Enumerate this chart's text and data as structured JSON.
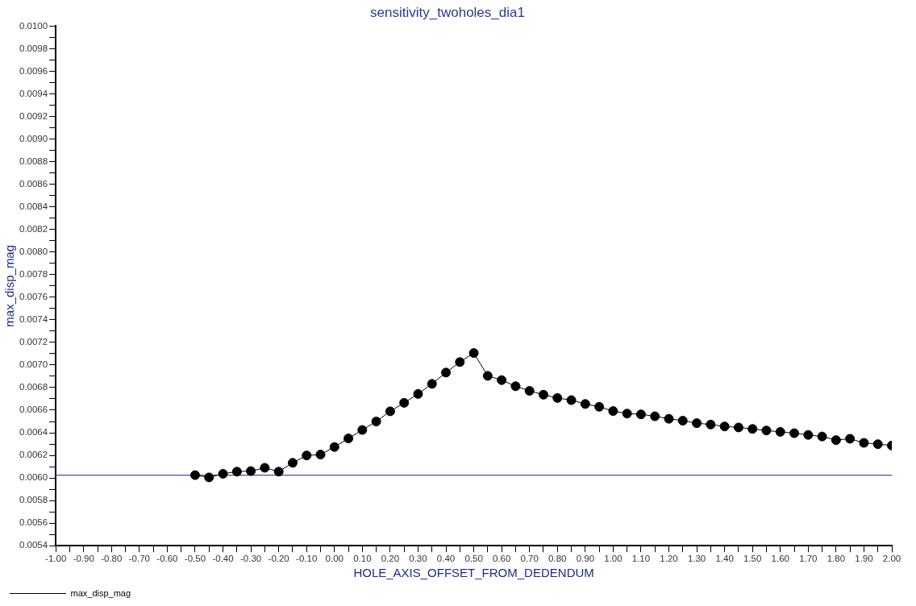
{
  "chart_data": {
    "type": "line",
    "title": "sensitivity_twoholes_dia1",
    "xlabel": "HOLE_AXIS_OFFSET_FROM_DEDENDUM",
    "ylabel": "max_disp_mag",
    "x": [
      -0.5,
      -0.45,
      -0.4,
      -0.35,
      -0.3,
      -0.25,
      -0.2,
      -0.15,
      -0.1,
      -0.05,
      0,
      0.05,
      0.1,
      0.15,
      0.2,
      0.25,
      0.3,
      0.35,
      0.4,
      0.45,
      0.5,
      0.55,
      0.6,
      0.65,
      0.7,
      0.75,
      0.8,
      0.85,
      0.9,
      0.95,
      1,
      1.05,
      1.1,
      1.15,
      1.2,
      1.25,
      1.3,
      1.35,
      1.4,
      1.45,
      1.5,
      1.55,
      1.6,
      1.65,
      1.7,
      1.75,
      1.8,
      1.85,
      1.9,
      1.95,
      2
    ],
    "series": [
      {
        "name": "max_disp_mag",
        "color": "#000000",
        "values": [
          0.006025,
          0.006005,
          0.006037,
          0.006056,
          0.006061,
          0.00609,
          0.006056,
          0.006134,
          0.006199,
          0.006207,
          0.006274,
          0.00635,
          0.006425,
          0.0065,
          0.00659,
          0.006665,
          0.006744,
          0.006833,
          0.006933,
          0.007026,
          0.007106,
          0.006904,
          0.006866,
          0.006812,
          0.006771,
          0.006737,
          0.006708,
          0.006689,
          0.006655,
          0.00663,
          0.006592,
          0.00657,
          0.006563,
          0.006546,
          0.006524,
          0.006507,
          0.006485,
          0.006473,
          0.006456,
          0.006447,
          0.006434,
          0.00642,
          0.006408,
          0.006396,
          0.006381,
          0.006367,
          0.006335,
          0.006347,
          0.006311,
          0.006299,
          0.006287
        ]
      }
    ],
    "marker": "circle",
    "line_style": "solid",
    "grid": false,
    "legend": "bottom left",
    "ref_lines": [
      {
        "axis": "y",
        "value": 0.006025,
        "color": "#4a4aa8"
      }
    ],
    "xlim": [
      -1,
      2
    ],
    "ylim": [
      0.0054,
      0.01
    ],
    "xticks": [
      {
        "value": -1,
        "label": "-1.00"
      },
      {
        "value": -0.95,
        "label": null
      },
      {
        "value": -0.9,
        "label": "-0.90"
      },
      {
        "value": -0.85,
        "label": null
      },
      {
        "value": -0.8,
        "label": "-0.80"
      },
      {
        "value": -0.75,
        "label": null
      },
      {
        "value": -0.7,
        "label": "-0.70"
      },
      {
        "value": -0.65,
        "label": null
      },
      {
        "value": -0.6,
        "label": "-0.60"
      },
      {
        "value": -0.55,
        "label": null
      },
      {
        "value": -0.5,
        "label": "-0.50"
      },
      {
        "value": -0.45,
        "label": null
      },
      {
        "value": -0.4,
        "label": "-0.40"
      },
      {
        "value": -0.35,
        "label": null
      },
      {
        "value": -0.3,
        "label": "-0.30"
      },
      {
        "value": -0.25,
        "label": null
      },
      {
        "value": -0.2,
        "label": "-0.20"
      },
      {
        "value": -0.15,
        "label": null
      },
      {
        "value": -0.1,
        "label": "-0.10"
      },
      {
        "value": -0.05,
        "label": null
      },
      {
        "value": 0,
        "label": "0.00"
      },
      {
        "value": 0.05,
        "label": null
      },
      {
        "value": 0.1,
        "label": "0.10"
      },
      {
        "value": 0.15,
        "label": null
      },
      {
        "value": 0.2,
        "label": "0.20"
      },
      {
        "value": 0.25,
        "label": null
      },
      {
        "value": 0.3,
        "label": "0.30"
      },
      {
        "value": 0.35,
        "label": null
      },
      {
        "value": 0.4,
        "label": "0.40"
      },
      {
        "value": 0.45,
        "label": null
      },
      {
        "value": 0.5,
        "label": "0.50"
      },
      {
        "value": 0.55,
        "label": null
      },
      {
        "value": 0.6,
        "label": "0.60"
      },
      {
        "value": 0.65,
        "label": null
      },
      {
        "value": 0.7,
        "label": "0.70"
      },
      {
        "value": 0.75,
        "label": null
      },
      {
        "value": 0.8,
        "label": "0.80"
      },
      {
        "value": 0.85,
        "label": null
      },
      {
        "value": 0.9,
        "label": "0.90"
      },
      {
        "value": 0.95,
        "label": null
      },
      {
        "value": 1,
        "label": "1.00"
      },
      {
        "value": 1.05,
        "label": null
      },
      {
        "value": 1.1,
        "label": "1.10"
      },
      {
        "value": 1.15,
        "label": null
      },
      {
        "value": 1.2,
        "label": "1.20"
      },
      {
        "value": 1.25,
        "label": null
      },
      {
        "value": 1.3,
        "label": "1.30"
      },
      {
        "value": 1.35,
        "label": null
      },
      {
        "value": 1.4,
        "label": "1.40"
      },
      {
        "value": 1.45,
        "label": null
      },
      {
        "value": 1.5,
        "label": "1.50"
      },
      {
        "value": 1.55,
        "label": null
      },
      {
        "value": 1.6,
        "label": "1.60"
      },
      {
        "value": 1.65,
        "label": null
      },
      {
        "value": 1.7,
        "label": "1.70"
      },
      {
        "value": 1.75,
        "label": null
      },
      {
        "value": 1.8,
        "label": "1.80"
      },
      {
        "value": 1.85,
        "label": null
      },
      {
        "value": 1.9,
        "label": "1.90"
      },
      {
        "value": 1.95,
        "label": null
      },
      {
        "value": 2,
        "label": "2.00"
      }
    ],
    "yticks": [
      {
        "value": 0.0054,
        "label": "0.0054"
      },
      {
        "value": 0.0055,
        "label": null
      },
      {
        "value": 0.0056,
        "label": "0.0056"
      },
      {
        "value": 0.0057,
        "label": null
      },
      {
        "value": 0.0058,
        "label": "0.0058"
      },
      {
        "value": 0.0059,
        "label": null
      },
      {
        "value": 0.006,
        "label": "0.0060"
      },
      {
        "value": 0.0061,
        "label": null
      },
      {
        "value": 0.0062,
        "label": "0.0062"
      },
      {
        "value": 0.0063,
        "label": null
      },
      {
        "value": 0.0064,
        "label": "0.0064"
      },
      {
        "value": 0.0065,
        "label": null
      },
      {
        "value": 0.0066,
        "label": "0.0066"
      },
      {
        "value": 0.0067,
        "label": null
      },
      {
        "value": 0.0068,
        "label": "0.0068"
      },
      {
        "value": 0.0069,
        "label": null
      },
      {
        "value": 0.007,
        "label": "0.0070"
      },
      {
        "value": 0.0071,
        "label": null
      },
      {
        "value": 0.0072,
        "label": "0.0072"
      },
      {
        "value": 0.0073,
        "label": null
      },
      {
        "value": 0.0074,
        "label": "0.0074"
      },
      {
        "value": 0.0075,
        "label": null
      },
      {
        "value": 0.0076,
        "label": "0.0076"
      },
      {
        "value": 0.0077,
        "label": null
      },
      {
        "value": 0.0078,
        "label": "0.0078"
      },
      {
        "value": 0.0079,
        "label": null
      },
      {
        "value": 0.008,
        "label": "0.0080"
      },
      {
        "value": 0.0081,
        "label": null
      },
      {
        "value": 0.0082,
        "label": "0.0082"
      },
      {
        "value": 0.0083,
        "label": null
      },
      {
        "value": 0.0084,
        "label": "0.0084"
      },
      {
        "value": 0.0085,
        "label": null
      },
      {
        "value": 0.0086,
        "label": "0.0086"
      },
      {
        "value": 0.0087,
        "label": null
      },
      {
        "value": 0.0088,
        "label": "0.0088"
      },
      {
        "value": 0.0089,
        "label": null
      },
      {
        "value": 0.009,
        "label": "0.0090"
      },
      {
        "value": 0.0091,
        "label": null
      },
      {
        "value": 0.0092,
        "label": "0.0092"
      },
      {
        "value": 0.0093,
        "label": null
      },
      {
        "value": 0.0094,
        "label": "0.0094"
      },
      {
        "value": 0.0095,
        "label": null
      },
      {
        "value": 0.0096,
        "label": "0.0096"
      },
      {
        "value": 0.0097,
        "label": null
      },
      {
        "value": 0.0098,
        "label": "0.0098"
      },
      {
        "value": 0.0099,
        "label": null
      },
      {
        "value": 0.01,
        "label": "0.0100"
      }
    ]
  }
}
